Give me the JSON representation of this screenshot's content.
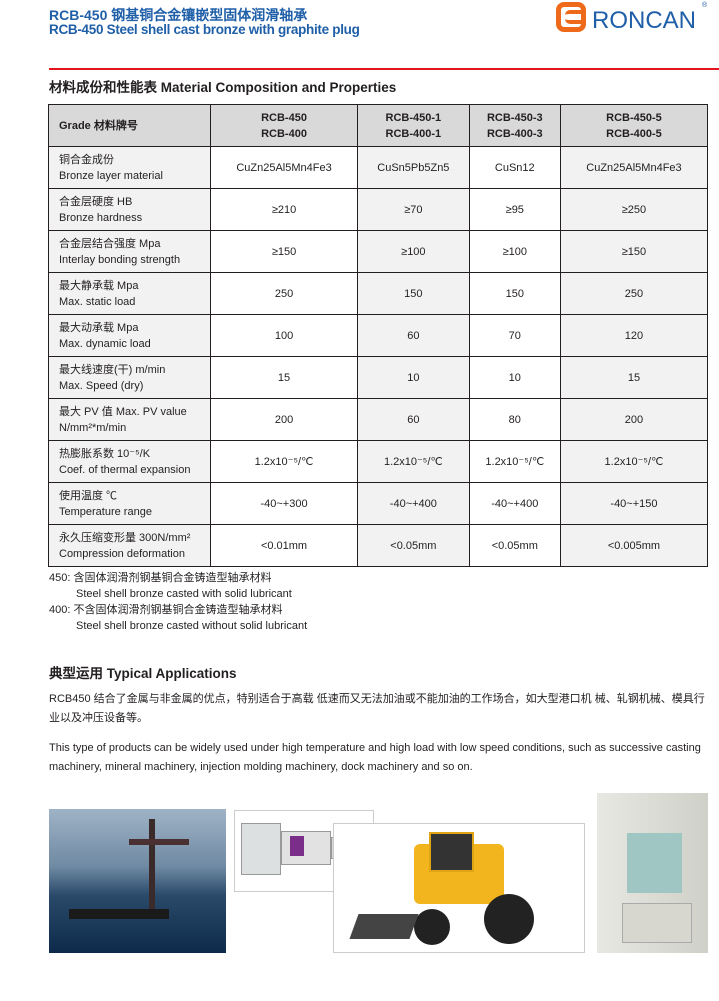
{
  "header": {
    "title_cn": "RCB-450 钢基铜合金镶嵌型固体润滑轴承",
    "title_en": "RCB-450 Steel shell cast bronze with graphite plug",
    "logo": "RONCAN",
    "logo_reg": "®"
  },
  "colors": {
    "brand_blue": "#1f5fa8",
    "logo_orange": "#ee6a1a",
    "rule_red": "#e3141b"
  },
  "table_section": {
    "title": "材料成份和性能表 Material Composition and Properties",
    "header": {
      "grade": "Grade 材料牌号",
      "cols": [
        [
          "RCB-450",
          "RCB-400"
        ],
        [
          "RCB-450-1",
          "RCB-400-1"
        ],
        [
          "RCB-450-3",
          "RCB-400-3"
        ],
        [
          "RCB-450-5",
          "RCB-400-5"
        ]
      ]
    },
    "rows": [
      {
        "cn": "铜合金成份",
        "en": "Bronze layer material",
        "values": [
          "CuZn25Al5Mn4Fe3",
          "CuSn5Pb5Zn5",
          "CuSn12",
          "CuZn25Al5Mn4Fe3"
        ]
      },
      {
        "cn": "合金层硬度 HB",
        "en": "Bronze hardness",
        "values": [
          "≥210",
          "≥70",
          "≥95",
          "≥250"
        ]
      },
      {
        "cn": "合金层结合强度 Mpa",
        "en": "Interlay bonding strength",
        "values": [
          "≥150",
          "≥100",
          "≥100",
          "≥150"
        ]
      },
      {
        "cn": "最大静承载 Mpa",
        "en": "Max. static load",
        "values": [
          "250",
          "150",
          "150",
          "250"
        ]
      },
      {
        "cn": "最大动承载 Mpa",
        "en": "Max. dynamic load",
        "values": [
          "100",
          "60",
          "70",
          "120"
        ]
      },
      {
        "cn": "最大线速度(干) m/min",
        "en": "Max. Speed (dry)",
        "values": [
          "15",
          "10",
          "10",
          "15"
        ]
      },
      {
        "cn": "最大 PV 值 Max. PV value",
        "en": "N/mm²*m/min",
        "values": [
          "200",
          "60",
          "80",
          "200"
        ]
      },
      {
        "cn": "热膨胀系数 10⁻⁵/K",
        "en": "Coef. of thermal expansion",
        "values": [
          "1.2x10⁻⁵/℃",
          "1.2x10⁻⁵/℃",
          "1.2x10⁻⁵/℃",
          "1.2x10⁻⁵/℃"
        ]
      },
      {
        "cn": "使用温度 ℃",
        "en": "Temperature range",
        "values": [
          "-40~+300",
          "-40~+400",
          "-40~+400",
          "-40~+150"
        ]
      },
      {
        "cn": "永久压缩变形量 300N/mm²",
        "en": "Compression deformation",
        "values": [
          "<0.01mm",
          "<0.05mm",
          "<0.05mm",
          "<0.005mm"
        ]
      }
    ]
  },
  "notes": [
    "450: 含固体润滑剂钢基铜合金铸造型轴承材料",
    "Steel shell bronze casted with solid lubricant",
    "400: 不含固体润滑剂钢基铜合金铸造型轴承材料",
    "Steel shell bronze casted without solid lubricant"
  ],
  "applications": {
    "title": "典型运用 Typical Applications",
    "text_cn": "RCB450 结合了金属与非金属的优点，特别适合于高载 低速而又无法加油或不能加油的工作场合，如大型港口机 械、轧钢机械、模具行业以及冲压设备等。",
    "text_en": "This type of products can be widely used under high temperature and high load with low speed conditions, such as successive casting machinery, mineral machinery, injection molding machinery, dock machinery and so on."
  }
}
